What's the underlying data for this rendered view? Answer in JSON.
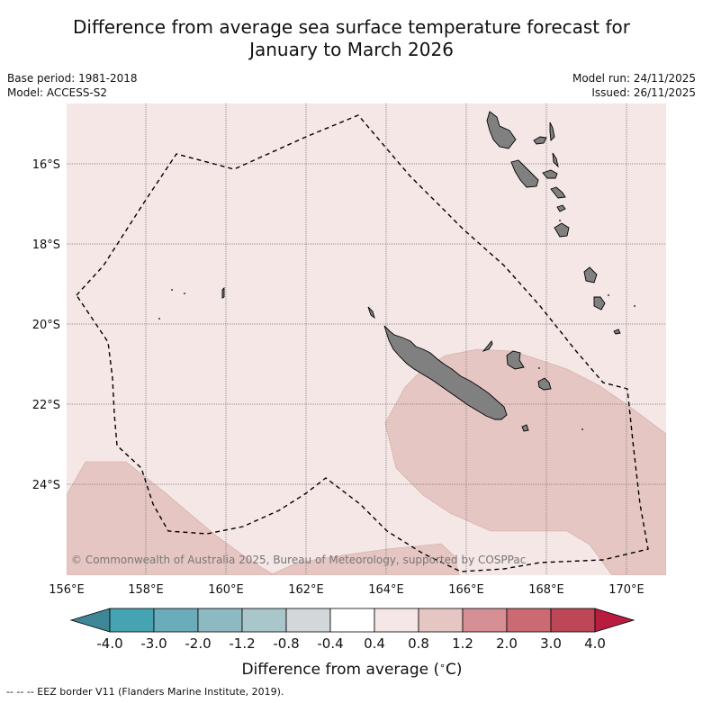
{
  "title": {
    "line1": "Difference from average sea surface temperature forecast for",
    "line2": "January to March 2026"
  },
  "info": {
    "base_period": "Base period: 1981-2018",
    "model": "Model: ACCESS-S2",
    "model_run": "Model run: 24/11/2025",
    "issued": "Issued: 26/11/2025"
  },
  "map": {
    "copyright": "© Commonwealth of Australia 2025, Bureau of Meteorology, supported by COSPPac",
    "lat_labels": [
      "16°S",
      "18°S",
      "20°S",
      "22°S",
      "24°S"
    ],
    "lon_labels": [
      "156°E",
      "158°E",
      "160°E",
      "162°E",
      "164°E",
      "166°E",
      "168°E",
      "170°E"
    ],
    "colors": {
      "ocean_near_zero": "#f4e7e5",
      "warm_anomaly": "#e6c6c2",
      "land": "#808080",
      "grid": "#777777"
    }
  },
  "legend": {
    "tick_labels": [
      "-4.0",
      "-3.0",
      "-2.0",
      "-1.2",
      "-0.8",
      "-0.4",
      "0.4",
      "0.8",
      "1.2",
      "2.0",
      "3.0",
      "4.0"
    ],
    "colors": [
      "#3e8796",
      "#45a3b2",
      "#6aacba",
      "#8db9c3",
      "#a9c6cb",
      "#d2d8da",
      "#ffffff",
      "#f4e7e5",
      "#e6c6c2",
      "#d68f95",
      "#cc6a73",
      "#bd4757",
      "#b81d3f"
    ],
    "title": "Difference from average (",
    "degree_symbol": "∘",
    "unit": "C)"
  },
  "footnote": "--  --  -- EEZ border V11 (Flanders Marine Institute, 2019)."
}
